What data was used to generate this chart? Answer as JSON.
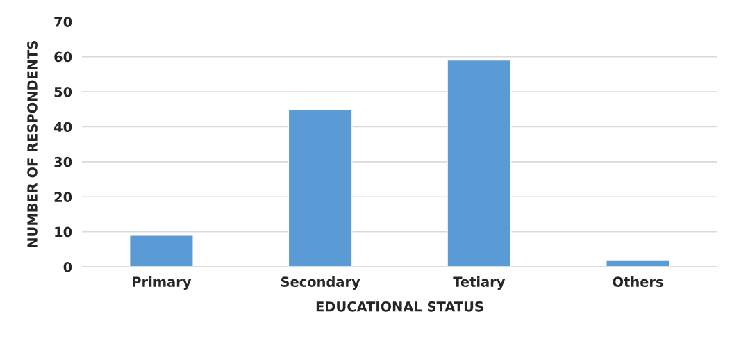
{
  "chart_data": {
    "type": "bar",
    "xlabel": "EDUCATIONAL STATUS",
    "ylabel": "NUMBER OF RESPONDENTS",
    "categories": [
      "Primary",
      "Secondary",
      "Tetiary",
      "Others"
    ],
    "values": [
      9,
      45,
      59,
      2
    ],
    "color": "#5b9bd5",
    "ylim": [
      0,
      70
    ],
    "yticks": [
      0,
      10,
      20,
      30,
      40,
      50,
      60,
      70
    ],
    "grid": "y",
    "legend": false
  }
}
